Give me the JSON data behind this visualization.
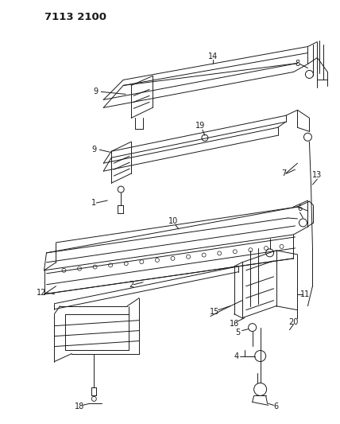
{
  "title": "7113 2100",
  "bg_color": "#ffffff",
  "fg_color": "#1a1a1a",
  "fig_width": 4.28,
  "fig_height": 5.33,
  "dpi": 100,
  "label_fs": 7.0,
  "title_fs": 9.5
}
